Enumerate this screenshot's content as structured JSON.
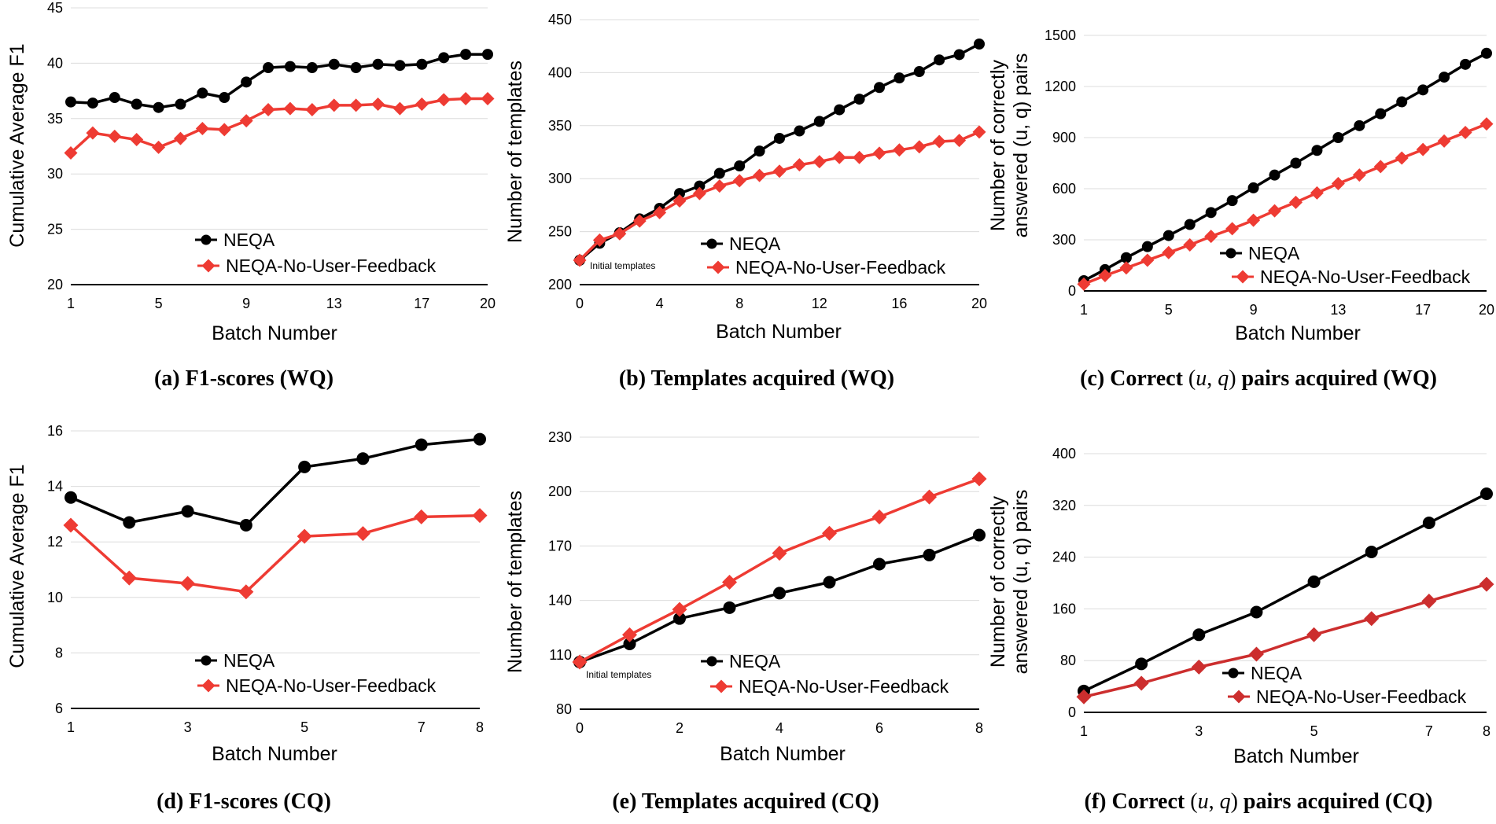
{
  "chart_data": [
    {
      "type": "line",
      "caption": "(a) F1-scores (WQ)",
      "xlabel": "Batch Number",
      "ylabel": "Cumulative Average F1",
      "xlim": [
        1,
        20
      ],
      "ylim": [
        20,
        45
      ],
      "xticks": [
        1,
        5,
        9,
        13,
        17,
        20
      ],
      "yticks": [
        20,
        25,
        30,
        35,
        40,
        45
      ],
      "x": [
        1,
        2,
        3,
        4,
        5,
        6,
        7,
        8,
        9,
        10,
        11,
        12,
        13,
        14,
        15,
        16,
        17,
        18,
        19,
        20
      ],
      "legend": "middle-left",
      "series": [
        {
          "name": "NEQA",
          "color": "#000000",
          "marker": "circle",
          "values": [
            36.5,
            36.4,
            36.9,
            36.3,
            36.0,
            36.3,
            37.3,
            36.9,
            38.3,
            39.6,
            39.7,
            39.6,
            39.9,
            39.6,
            39.9,
            39.8,
            39.9,
            40.5,
            40.8,
            40.8
          ]
        },
        {
          "name": "NEQA-No-User-Feedback",
          "color": "#ee3b33",
          "marker": "diamond",
          "values": [
            31.9,
            33.7,
            33.4,
            33.1,
            32.4,
            33.2,
            34.1,
            34.0,
            34.8,
            35.8,
            35.9,
            35.8,
            36.2,
            36.2,
            36.3,
            35.9,
            36.3,
            36.7,
            36.8,
            36.8
          ]
        }
      ]
    },
    {
      "type": "line",
      "caption": "(b) Templates acquired (WQ)",
      "xlabel": "Batch Number",
      "ylabel": "Number of templates",
      "xlim": [
        0,
        20
      ],
      "ylim": [
        200,
        450
      ],
      "xticks": [
        0,
        4,
        8,
        12,
        16,
        20
      ],
      "yticks": [
        200,
        250,
        300,
        350,
        400,
        450
      ],
      "x": [
        0,
        1,
        2,
        3,
        4,
        5,
        6,
        7,
        8,
        9,
        10,
        11,
        12,
        13,
        14,
        15,
        16,
        17,
        18,
        19,
        20
      ],
      "legend": "lower-right",
      "annotation": "Initial templates",
      "series": [
        {
          "name": "NEQA",
          "color": "#000000",
          "marker": "circle",
          "values": [
            223,
            239,
            249,
            262,
            272,
            286,
            293,
            305,
            312,
            326,
            338,
            345,
            354,
            365,
            375,
            386,
            395,
            401,
            412,
            417,
            427
          ]
        },
        {
          "name": "NEQA-No-User-Feedback",
          "color": "#ee3b33",
          "marker": "diamond",
          "values": [
            223,
            242,
            248,
            260,
            268,
            279,
            286,
            293,
            298,
            303,
            307,
            313,
            316,
            320,
            320,
            324,
            327,
            330,
            335,
            336,
            344
          ]
        }
      ]
    },
    {
      "type": "line",
      "caption": "(c) Correct (u, q) pairs acquired (WQ)",
      "caption_parts": [
        "(c) Correct ",
        "(",
        "u",
        ", ",
        "q",
        ")",
        " pairs acquired (WQ)"
      ],
      "xlabel": "Batch Number",
      "ylabel": [
        "Number of correctly",
        "answered (u, q) pairs"
      ],
      "xlim": [
        1,
        20
      ],
      "ylim": [
        0,
        1500
      ],
      "xticks": [
        1,
        5,
        9,
        13,
        17,
        20
      ],
      "yticks": [
        0,
        300,
        600,
        900,
        1200,
        1500
      ],
      "x": [
        1,
        2,
        3,
        4,
        5,
        6,
        7,
        8,
        9,
        10,
        11,
        12,
        13,
        14,
        15,
        16,
        17,
        18,
        19,
        20
      ],
      "legend": "lower-right",
      "series": [
        {
          "name": "NEQA",
          "color": "#000000",
          "marker": "circle",
          "values": [
            60,
            125,
            195,
            260,
            325,
            390,
            460,
            530,
            605,
            680,
            750,
            825,
            900,
            970,
            1040,
            1110,
            1180,
            1255,
            1330,
            1395
          ]
        },
        {
          "name": "NEQA-No-User-Feedback",
          "color": "#ee3b33",
          "marker": "diamond",
          "values": [
            40,
            90,
            135,
            180,
            225,
            270,
            320,
            365,
            415,
            470,
            520,
            575,
            630,
            680,
            730,
            780,
            830,
            880,
            930,
            980
          ]
        }
      ]
    },
    {
      "type": "line",
      "caption": "(d) F1-scores (CQ)",
      "xlabel": "Batch Number",
      "ylabel": "Cumulative Average F1",
      "xlim": [
        1,
        8
      ],
      "ylim": [
        6,
        16
      ],
      "xticks": [
        1,
        3,
        5,
        7,
        8
      ],
      "yticks": [
        6,
        8,
        10,
        12,
        14,
        16
      ],
      "x": [
        1,
        2,
        3,
        4,
        5,
        6,
        7,
        8
      ],
      "legend": "lower-left",
      "series": [
        {
          "name": "NEQA",
          "color": "#000000",
          "marker": "circle",
          "values": [
            13.6,
            12.7,
            13.1,
            12.6,
            14.7,
            15.0,
            15.5,
            15.7
          ]
        },
        {
          "name": "NEQA-No-User-Feedback",
          "color": "#ee3b33",
          "marker": "diamond",
          "values": [
            12.6,
            10.7,
            10.5,
            10.2,
            12.2,
            12.3,
            12.9,
            12.95
          ]
        }
      ]
    },
    {
      "type": "line",
      "caption": "(e) Templates acquired (CQ)",
      "xlabel": "Batch Number",
      "ylabel": "Number of templates",
      "xlim": [
        0,
        8
      ],
      "ylim": [
        80,
        230
      ],
      "xticks": [
        0,
        2,
        4,
        6,
        8
      ],
      "yticks": [
        80,
        110,
        140,
        170,
        200,
        230
      ],
      "x": [
        0,
        1,
        2,
        3,
        4,
        5,
        6,
        7,
        8
      ],
      "legend": "lower-right",
      "annotation": "Initial templates",
      "series": [
        {
          "name": "NEQA",
          "color": "#000000",
          "marker": "circle",
          "values": [
            106,
            116,
            130,
            136,
            144,
            150,
            160,
            165,
            176
          ]
        },
        {
          "name": "NEQA-No-User-Feedback",
          "color": "#ee3b33",
          "marker": "diamond",
          "values": [
            106,
            121,
            135,
            150,
            166,
            177,
            186,
            197,
            207
          ]
        }
      ]
    },
    {
      "type": "line",
      "caption": "(f) Correct (u, q) pairs acquired (CQ)",
      "caption_parts": [
        "(f) Correct ",
        "(",
        "u",
        ", ",
        "q",
        ")",
        " pairs acquired (CQ)"
      ],
      "xlabel": "Batch Number",
      "ylabel": [
        "Number of correctly",
        "answered (u, q) pairs"
      ],
      "xlim": [
        1,
        8
      ],
      "ylim": [
        0,
        400
      ],
      "xticks": [
        1,
        3,
        5,
        7,
        8
      ],
      "yticks": [
        0,
        80,
        160,
        240,
        320,
        400
      ],
      "x": [
        1,
        2,
        3,
        4,
        5,
        6,
        7,
        8
      ],
      "legend": "lower-right",
      "series": [
        {
          "name": "NEQA",
          "color": "#000000",
          "marker": "circle",
          "values": [
            33,
            75,
            120,
            155,
            202,
            248,
            293,
            338
          ]
        },
        {
          "name": "NEQA-No-User-Feedback",
          "color": "#cc2e2e",
          "marker": "diamond",
          "values": [
            24,
            45,
            70,
            90,
            120,
            145,
            172,
            198
          ]
        }
      ]
    }
  ]
}
